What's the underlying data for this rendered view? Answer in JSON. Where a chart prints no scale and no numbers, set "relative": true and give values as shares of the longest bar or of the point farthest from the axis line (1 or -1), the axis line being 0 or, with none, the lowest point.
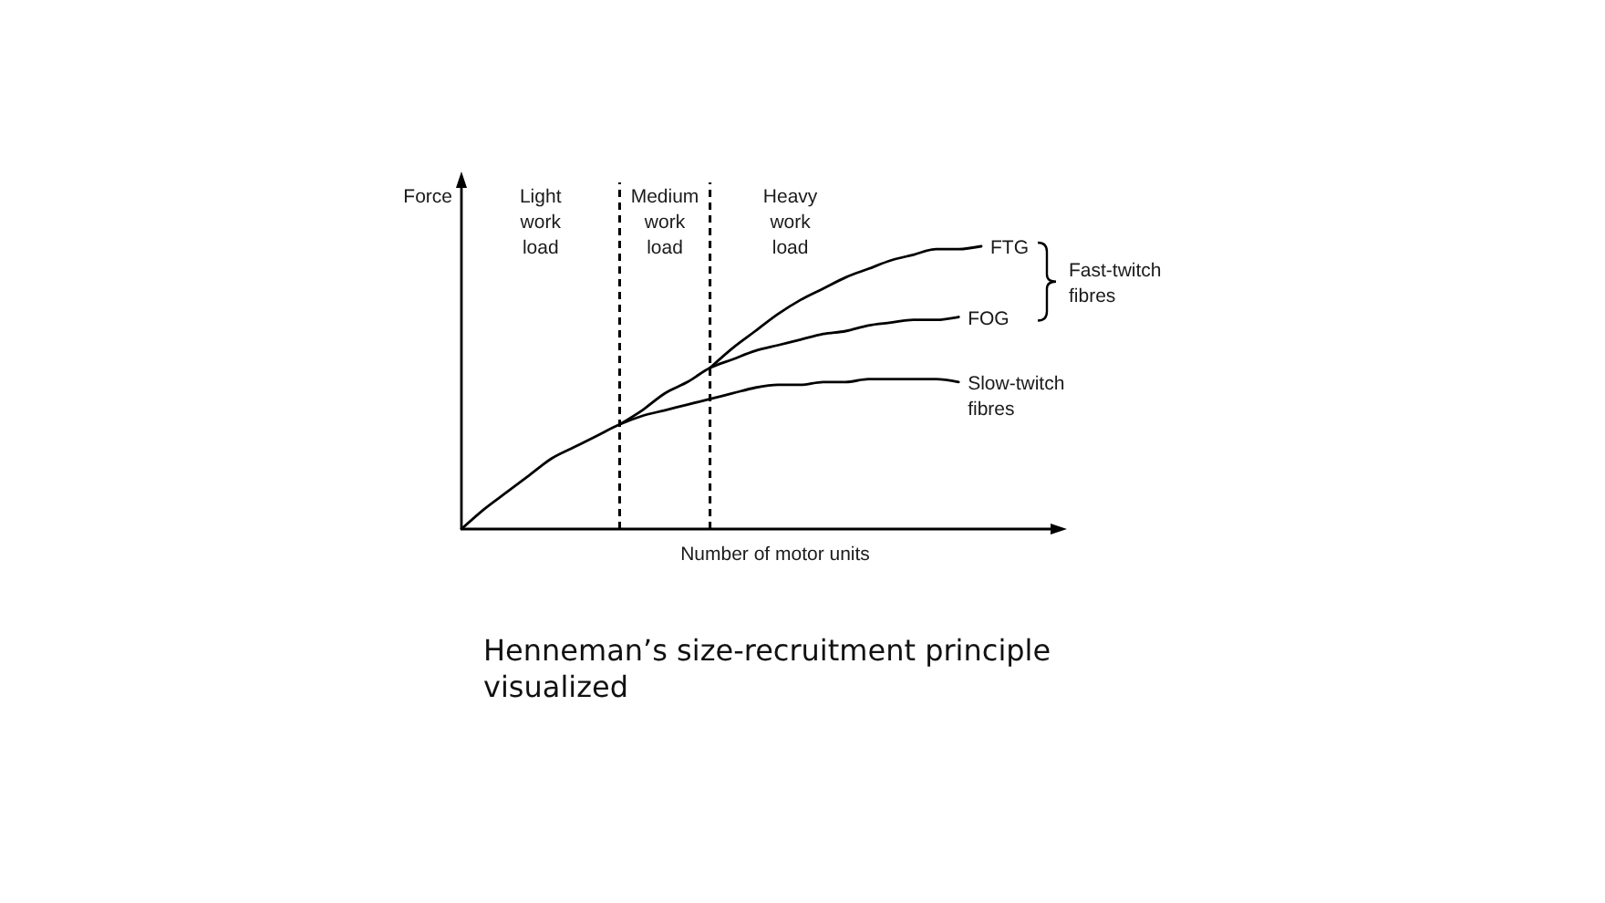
{
  "chart_data": {
    "type": "line",
    "title": "Henneman’s size-recruitment principle visualized",
    "xlabel": "Number of motor units",
    "ylabel": "Force",
    "relative": true,
    "categories": [
      null,
      null,
      null,
      null,
      null,
      null,
      null,
      null,
      null,
      null,
      null,
      null,
      null,
      null,
      null,
      null,
      null,
      null,
      null,
      null,
      null,
      null,
      null,
      null
    ],
    "series": [
      {
        "name": "FTG",
        "color": "#000000",
        "values": [
          null,
          null,
          null,
          null,
          null,
          null,
          null,
          null,
          null,
          null,
          null,
          0.57,
          0.64,
          0.7,
          0.76,
          0.81,
          0.85,
          0.89,
          0.92,
          0.95,
          0.97,
          0.99,
          0.99,
          1
        ]
      },
      {
        "name": "FOG",
        "color": "#000000",
        "values": [
          null,
          null,
          null,
          null,
          null,
          null,
          null,
          0.37,
          0.42,
          0.48,
          0.52,
          0.57,
          0.6,
          0.63,
          0.65,
          0.67,
          0.69,
          0.7,
          0.72,
          0.73,
          0.74,
          0.74,
          0.75,
          null
        ]
      },
      {
        "name": "Slow-twitch fibres",
        "color": "#000000",
        "values": [
          0,
          0.07,
          0.13,
          0.19,
          0.25,
          0.29,
          0.33,
          0.37,
          0.4,
          0.42,
          0.44,
          0.46,
          0.48,
          0.5,
          0.51,
          0.51,
          0.52,
          0.52,
          0.53,
          0.53,
          0.53,
          0.53,
          0.52,
          null
        ]
      }
    ],
    "annotations": [
      "Light work load",
      "Medium work load",
      "Heavy work load",
      "Fast-twitch fibres"
    ]
  }
}
